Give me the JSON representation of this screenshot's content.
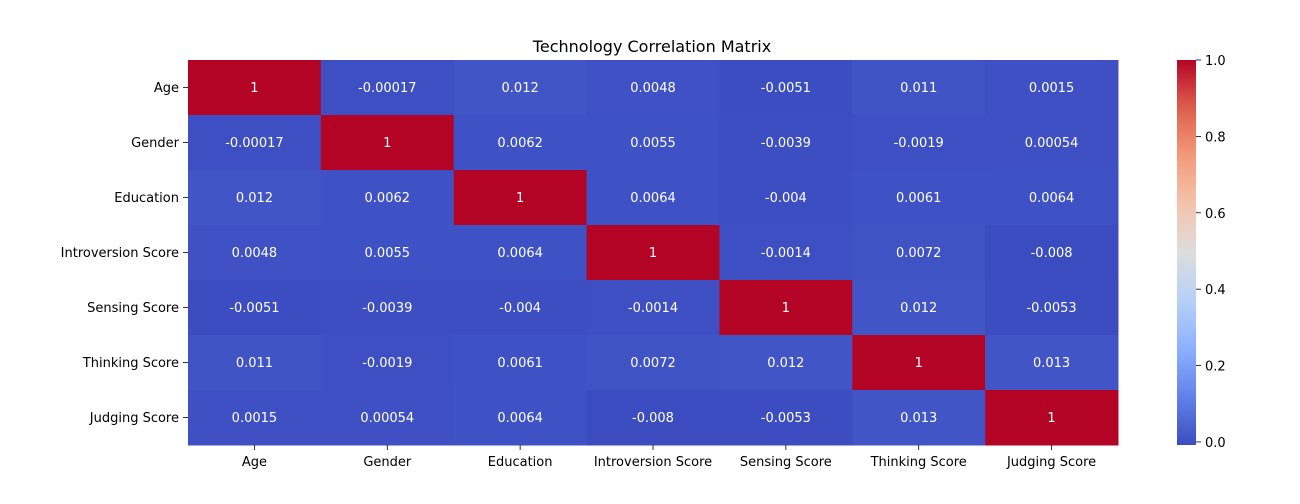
{
  "chart_data": {
    "type": "heatmap",
    "title": "Technology Correlation Matrix",
    "xlabel": "",
    "ylabel": "",
    "x_categories": [
      "Age",
      "Gender",
      "Education",
      "Introversion Score",
      "Sensing Score",
      "Thinking Score",
      "Judging Score"
    ],
    "y_categories": [
      "Age",
      "Gender",
      "Education",
      "Introversion Score",
      "Sensing Score",
      "Thinking Score",
      "Judging Score"
    ],
    "values": [
      [
        1,
        -0.00017,
        0.012,
        0.0048,
        -0.0051,
        0.011,
        0.0015
      ],
      [
        -0.00017,
        1,
        0.0062,
        0.0055,
        -0.0039,
        -0.0019,
        0.00054
      ],
      [
        0.012,
        0.0062,
        1,
        0.0064,
        -0.004,
        0.0061,
        0.0064
      ],
      [
        0.0048,
        0.0055,
        0.0064,
        1,
        -0.0014,
        0.0072,
        -0.008
      ],
      [
        -0.0051,
        -0.0039,
        -0.004,
        -0.0014,
        1,
        0.012,
        -0.0053
      ],
      [
        0.011,
        -0.0019,
        0.0061,
        0.0072,
        0.012,
        1,
        0.013
      ],
      [
        0.0015,
        0.00054,
        0.0064,
        -0.008,
        -0.0053,
        0.013,
        1
      ]
    ],
    "cell_labels": [
      [
        "1",
        "-0.00017",
        "0.012",
        "0.0048",
        "-0.0051",
        "0.011",
        "0.0015"
      ],
      [
        "-0.00017",
        "1",
        "0.0062",
        "0.0055",
        "-0.0039",
        "-0.0019",
        "0.00054"
      ],
      [
        "0.012",
        "0.0062",
        "1",
        "0.0064",
        "-0.004",
        "0.0061",
        "0.0064"
      ],
      [
        "0.0048",
        "0.0055",
        "0.0064",
        "1",
        "-0.0014",
        "0.0072",
        "-0.008"
      ],
      [
        "-0.0051",
        "-0.0039",
        "-0.004",
        "-0.0014",
        "1",
        "0.012",
        "-0.0053"
      ],
      [
        "0.011",
        "-0.0019",
        "0.0061",
        "0.0072",
        "0.012",
        "1",
        "0.013"
      ],
      [
        "0.0015",
        "0.00054",
        "0.0064",
        "-0.008",
        "-0.0053",
        "0.013",
        "1"
      ]
    ],
    "colormap": "coolwarm",
    "colorbar": {
      "range": [
        -0.008,
        1.0
      ],
      "ticks": [
        0.0,
        0.2,
        0.4,
        0.6,
        0.8,
        1.0
      ],
      "tick_labels": [
        "0.0",
        "0.2",
        "0.4",
        "0.6",
        "0.8",
        "1.0"
      ]
    },
    "grid": false,
    "legend": "colorbar-right"
  }
}
